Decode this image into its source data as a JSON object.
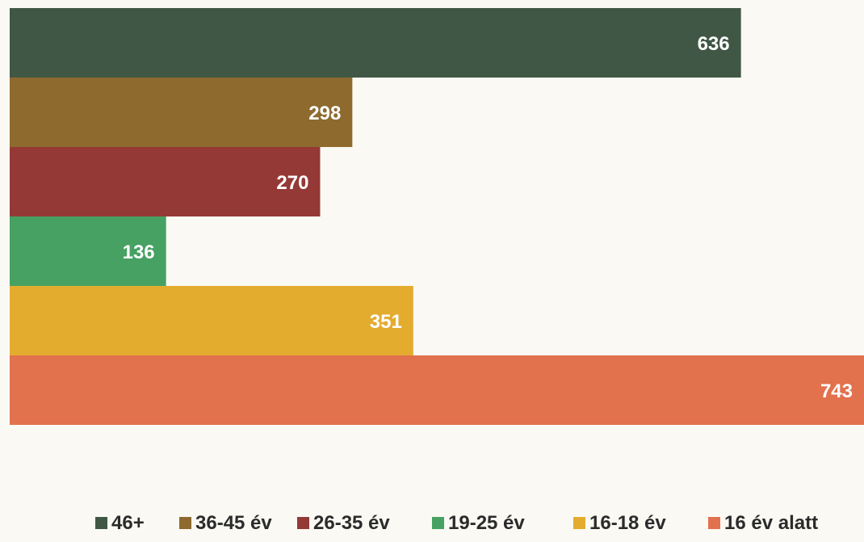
{
  "chart_data": {
    "type": "bar",
    "orientation": "horizontal",
    "title": "",
    "xlabel": "",
    "ylabel": "",
    "grid": false,
    "legend_position": "bottom",
    "xlim": [
      0,
      743
    ],
    "series": [
      {
        "name": "46+",
        "value": 636,
        "color": "#3f5744"
      },
      {
        "name": "36-45 év",
        "value": 298,
        "color": "#8e6a2f"
      },
      {
        "name": "26-35 év",
        "value": 270,
        "color": "#953936"
      },
      {
        "name": "19-25 év",
        "value": 136,
        "color": "#46a162"
      },
      {
        "name": "16-18 év",
        "value": 351,
        "color": "#e4ac2f"
      },
      {
        "name": "16 év alatt",
        "value": 743,
        "color": "#e2714e"
      }
    ]
  }
}
